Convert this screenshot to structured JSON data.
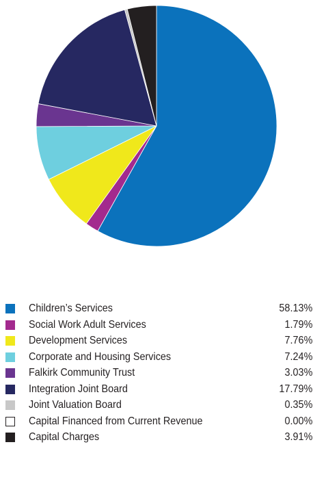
{
  "chart_data": {
    "type": "pie",
    "title": "",
    "start_angle_deg": 0,
    "direction": "clockwise",
    "slices": [
      {
        "label": "Children’s Services",
        "value": 58.13,
        "value_label": "58.13%",
        "color": "#0b72bc"
      },
      {
        "label": "Social Work Adult Services",
        "value": 1.79,
        "value_label": "1.79%",
        "color": "#a32a8e"
      },
      {
        "label": "Development Services",
        "value": 7.76,
        "value_label": "7.76%",
        "color": "#f0e81b"
      },
      {
        "label": "Corporate and Housing Services",
        "value": 7.24,
        "value_label": "7.24%",
        "color": "#6ecfdf"
      },
      {
        "label": "Falkirk Community Trust",
        "value": 3.03,
        "value_label": "3.03%",
        "color": "#6a3590"
      },
      {
        "label": "Integration Joint Board",
        "value": 17.79,
        "value_label": "17.79%",
        "color": "#262861"
      },
      {
        "label": "Joint Valuation  Board",
        "value": 0.35,
        "value_label": "0.35%",
        "color": "#c8c8c8"
      },
      {
        "label": "Capital Financed from Current Revenue",
        "value": 0.0,
        "value_label": "0.00%",
        "color": "#ffffff",
        "outline": "#231f20"
      },
      {
        "label": "Capital Charges",
        "value": 3.91,
        "value_label": "3.91%",
        "color": "#231f20"
      }
    ]
  }
}
